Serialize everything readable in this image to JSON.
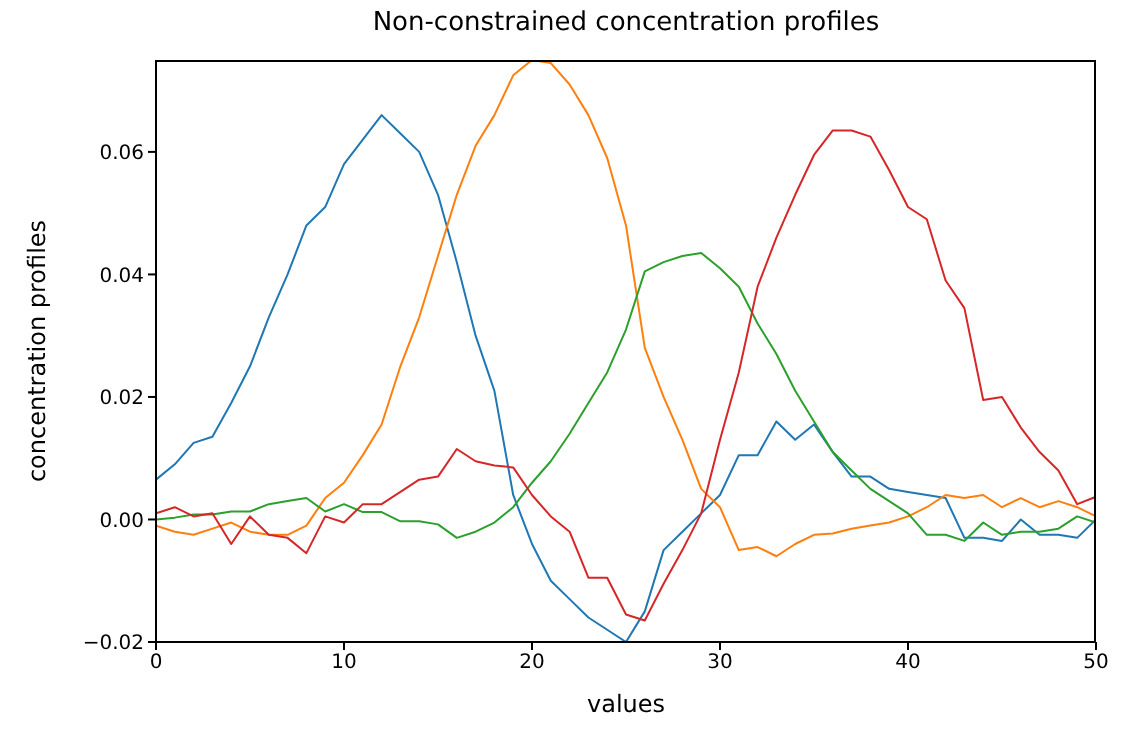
{
  "chart_data": {
    "type": "line",
    "title": "Non-constrained concentration profiles",
    "xlabel": "values",
    "ylabel": "concentration profiles",
    "x": [
      0,
      1,
      2,
      3,
      4,
      5,
      6,
      7,
      8,
      9,
      10,
      11,
      12,
      13,
      14,
      15,
      16,
      17,
      18,
      19,
      20,
      21,
      22,
      23,
      24,
      25,
      26,
      27,
      28,
      29,
      30,
      31,
      32,
      33,
      34,
      35,
      36,
      37,
      38,
      39,
      40,
      41,
      42,
      43,
      44,
      45,
      46,
      47,
      48,
      49,
      50
    ],
    "series": [
      {
        "color": "#1f77b4",
        "values": [
          0.0065,
          0.009,
          0.0125,
          0.0135,
          0.019,
          0.025,
          0.033,
          0.04,
          0.048,
          0.051,
          0.058,
          0.062,
          0.066,
          0.063,
          0.06,
          0.053,
          0.042,
          0.03,
          0.021,
          0.004,
          -0.004,
          -0.01,
          -0.013,
          -0.016,
          -0.018,
          -0.02,
          -0.015,
          -0.005,
          -0.002,
          0.001,
          0.004,
          0.0105,
          0.0105,
          0.016,
          0.013,
          0.0155,
          0.011,
          0.007,
          0.007,
          0.005,
          0.0045,
          0.004,
          0.0035,
          -0.003,
          -0.003,
          -0.0035,
          0.0,
          -0.0025,
          -0.0025,
          -0.003,
          0.0
        ]
      },
      {
        "color": "#ff7f0e",
        "values": [
          -0.001,
          -0.002,
          -0.0025,
          -0.0015,
          -0.0005,
          -0.002,
          -0.0025,
          -0.0025,
          -0.001,
          0.0035,
          0.006,
          0.0105,
          0.0155,
          0.025,
          0.033,
          0.043,
          0.053,
          0.061,
          0.066,
          0.0725,
          0.075,
          0.0745,
          0.071,
          0.066,
          0.059,
          0.048,
          0.028,
          0.02,
          0.013,
          0.005,
          0.002,
          -0.005,
          -0.0045,
          -0.006,
          -0.004,
          -0.0025,
          -0.0023,
          -0.0015,
          -0.001,
          -0.0005,
          0.0005,
          0.002,
          0.004,
          0.0035,
          0.004,
          0.002,
          0.0035,
          0.002,
          0.003,
          0.002,
          0.0005
        ]
      },
      {
        "color": "#2ca02c",
        "values": [
          0.0,
          0.0003,
          0.0008,
          0.0008,
          0.0013,
          0.0013,
          0.0025,
          0.003,
          0.0035,
          0.0013,
          0.0025,
          0.0012,
          0.0012,
          -0.0003,
          -0.0003,
          -0.0008,
          -0.003,
          -0.002,
          -0.0005,
          0.002,
          0.006,
          0.0095,
          0.014,
          0.019,
          0.024,
          0.031,
          0.0405,
          0.042,
          0.043,
          0.0435,
          0.041,
          0.038,
          0.032,
          0.027,
          0.021,
          0.016,
          0.011,
          0.008,
          0.005,
          0.003,
          0.001,
          -0.0025,
          -0.0025,
          -0.0035,
          -0.0005,
          -0.0025,
          -0.002,
          -0.002,
          -0.0015,
          0.0005,
          -0.0005
        ]
      },
      {
        "color": "#d62728",
        "values": [
          0.001,
          0.002,
          0.0005,
          0.001,
          -0.004,
          0.0005,
          -0.0025,
          -0.003,
          -0.0055,
          0.0005,
          -0.0005,
          0.0025,
          0.0025,
          0.0045,
          0.0065,
          0.007,
          0.0115,
          0.0095,
          0.0088,
          0.0085,
          0.004,
          0.0005,
          -0.002,
          -0.0095,
          -0.0095,
          -0.0155,
          -0.0165,
          -0.0105,
          -0.005,
          0.001,
          0.013,
          0.024,
          0.038,
          0.046,
          0.053,
          0.0595,
          0.0635,
          0.0635,
          0.0625,
          0.057,
          0.051,
          0.049,
          0.039,
          0.0345,
          0.0195,
          0.02,
          0.015,
          0.011,
          0.008,
          0.0025,
          0.0037
        ]
      }
    ],
    "xlim": [
      0,
      50
    ],
    "xticks": [
      0,
      10,
      20,
      30,
      40,
      50
    ],
    "ylim": [
      -0.02,
      0.075
    ],
    "yticks": [
      {
        "value": -0.02,
        "label": "−0.02"
      },
      {
        "value": 0,
        "label": "0.00"
      },
      {
        "value": 0.02,
        "label": "0.02"
      },
      {
        "value": 0.04,
        "label": "0.04"
      },
      {
        "value": 0.06,
        "label": "0.06"
      }
    ],
    "grid": false,
    "legend": false,
    "marker": "none",
    "line_style": "solid"
  }
}
